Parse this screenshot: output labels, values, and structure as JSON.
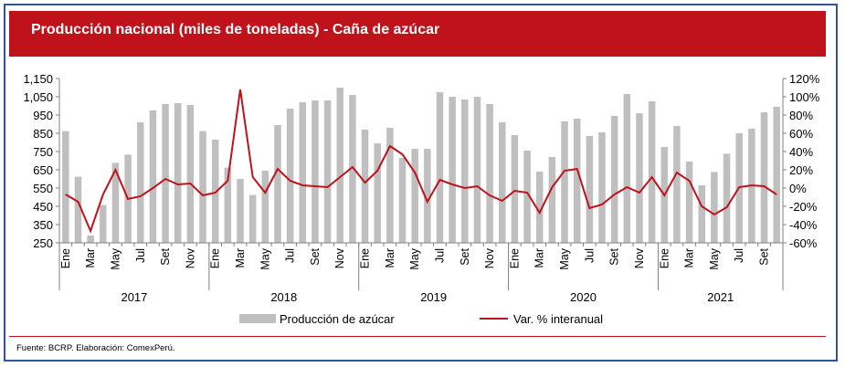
{
  "title": "Producción nacional (miles de toneladas) - Caña de azúcar",
  "source": "Fuente: BCRP. Elaboración: ComexPerú.",
  "colors": {
    "banner": "#c0121a",
    "bars": "#bfbfbf",
    "line": "#c0121a",
    "frame": "#2f5597"
  },
  "chart_data": {
    "type": "bar+line",
    "x_tick_labels": [
      "Ene",
      "Mar",
      "May",
      "Jul",
      "Set",
      "Nov"
    ],
    "years": [
      "2017",
      "2018",
      "2019",
      "2020",
      "2021"
    ],
    "left_axis": {
      "ticks": [
        "250",
        "350",
        "450",
        "550",
        "650",
        "750",
        "850",
        "950",
        "1,050",
        "1,150"
      ],
      "ylim": [
        250,
        1150
      ]
    },
    "right_axis": {
      "ticks": [
        "-60%",
        "-40%",
        "-20%",
        "0%",
        "20%",
        "40%",
        "60%",
        "80%",
        "100%",
        "120%"
      ],
      "ylim": [
        -60,
        120
      ]
    },
    "legend": {
      "bars": "Producción de azúcar",
      "line": "Var. % interanual",
      "placement": "bottom"
    },
    "series": [
      {
        "name": "Producción de azúcar",
        "kind": "bar",
        "axis": "left",
        "values": [
          862,
          612,
          290,
          457,
          688,
          733,
          910,
          975,
          1010,
          1015,
          1005,
          862,
          815,
          662,
          600,
          512,
          645,
          895,
          985,
          1020,
          1030,
          1030,
          1100,
          1060,
          870,
          795,
          880,
          715,
          765,
          765,
          1075,
          1050,
          1035,
          1050,
          1010,
          910,
          840,
          755,
          640,
          720,
          915,
          930,
          835,
          855,
          945,
          1065,
          960,
          1025,
          775,
          890,
          695,
          565,
          638,
          738,
          850,
          875,
          965,
          995
        ]
      },
      {
        "name": "Var. % interanual",
        "kind": "line",
        "axis": "right",
        "values": [
          -7,
          -15,
          -47,
          -7,
          20,
          -12,
          -9,
          0,
          10,
          4,
          5,
          -8,
          -5,
          8,
          108,
          12,
          -5,
          21,
          8,
          3,
          2,
          1,
          12,
          23,
          6,
          19,
          46,
          37,
          17,
          -15,
          9,
          4,
          0,
          2,
          -8,
          -14,
          -3,
          -5,
          -27,
          1,
          19,
          21,
          -22,
          -18,
          -7,
          1,
          -5,
          12,
          -8,
          17,
          8,
          -20,
          -29,
          -21,
          1,
          3,
          2,
          -7
        ]
      }
    ]
  }
}
